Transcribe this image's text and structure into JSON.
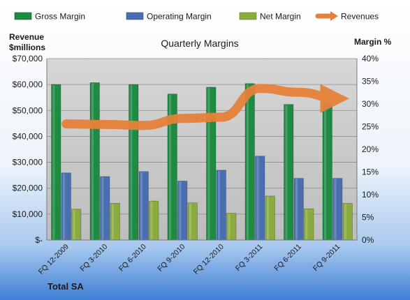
{
  "chart_data": {
    "type": "bar",
    "title": "Quarterly Margins",
    "footer_label": "Total SA",
    "left_axis": {
      "label_line1": "Revenue",
      "label_line2": "$millions",
      "range": [
        0,
        70000
      ],
      "ticks": [
        "$-",
        "$10,000",
        "$20,000",
        "$30,000",
        "$40,000",
        "$50,000",
        "$60,000",
        "$70,000"
      ]
    },
    "right_axis": {
      "label": "Margin %",
      "range": [
        0,
        40
      ],
      "ticks": [
        "0%",
        "5%",
        "10%",
        "15%",
        "20%",
        "25%",
        "30%",
        "35%",
        "40%"
      ]
    },
    "categories": [
      "FQ 12-2009",
      "FQ 3-2010",
      "FQ 6-2010",
      "FQ 9-2010",
      "FQ 12-2010",
      "FQ 3-2011",
      "FQ 6-2011",
      "FQ 9-2011"
    ],
    "legend_position": "top",
    "series": [
      {
        "name": "Gross Margin",
        "axis": "right",
        "kind": "bar",
        "color": "#1e8a42",
        "values": [
          34.3,
          34.7,
          34.3,
          32.2,
          33.7,
          34.5,
          29.9,
          30.1
        ]
      },
      {
        "name": "Operating Margin",
        "axis": "right",
        "kind": "bar",
        "color": "#4a6fb0",
        "values": [
          14.8,
          14.0,
          15.1,
          13.0,
          15.4,
          18.5,
          13.6,
          13.6
        ]
      },
      {
        "name": "Net Margin",
        "axis": "right",
        "kind": "bar",
        "color": "#8aab3e",
        "values": [
          6.8,
          8.1,
          8.6,
          8.2,
          5.9,
          9.7,
          6.9,
          8.1
        ]
      },
      {
        "name": "Revenues",
        "axis": "left",
        "kind": "line",
        "color": "#e6813a",
        "values": [
          44800,
          44600,
          44200,
          46900,
          47400,
          58500,
          57000,
          54600
        ]
      }
    ],
    "grid": true
  }
}
